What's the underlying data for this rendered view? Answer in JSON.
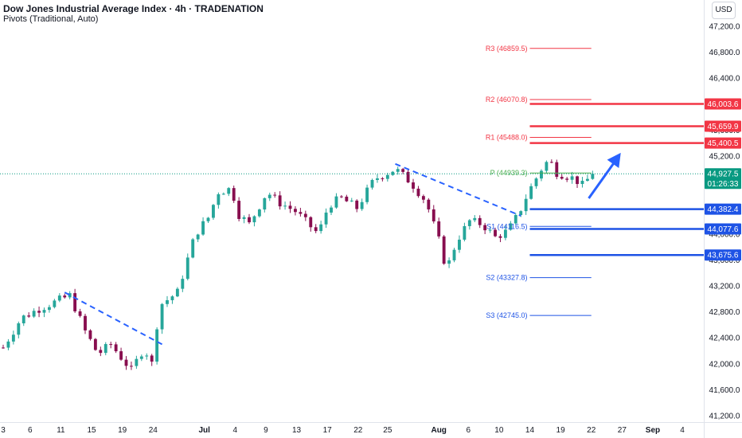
{
  "header": {
    "title": "Dow Jones Industrial Average Index · 4h · TRADENATION",
    "subtitle": "Pivots (Traditional, Auto)",
    "currency": "USD"
  },
  "colors": {
    "up": "#26a69a",
    "down": "#880e4f",
    "resistance": "#f23645",
    "support": "#1e53e5",
    "pivot": "#4caf50",
    "trend": "#2962ff",
    "price_tag": "#089981"
  },
  "chart_data": {
    "type": "candlestick",
    "ylim": [
      41100,
      47400
    ],
    "y_ticks": [
      {
        "value": 47200,
        "label": "47,200.0"
      },
      {
        "value": 46800,
        "label": "46,800.0"
      },
      {
        "value": 46400,
        "label": "46,400.0"
      },
      {
        "value": 46000,
        "label": "46,000.0"
      },
      {
        "value": 45600,
        "label": "45,600.0"
      },
      {
        "value": 45200,
        "label": "45,200.0"
      },
      {
        "value": 44800,
        "label": "44,800.0"
      },
      {
        "value": 44400,
        "label": "44,400.0"
      },
      {
        "value": 44000,
        "label": "44,000.0"
      },
      {
        "value": 43600,
        "label": "43,600.0"
      },
      {
        "value": 43200,
        "label": "43,200.0"
      },
      {
        "value": 42800,
        "label": "42,800.0"
      },
      {
        "value": 42400,
        "label": "42,400.0"
      },
      {
        "value": 42000,
        "label": "42,000.0"
      },
      {
        "value": 41600,
        "label": "41,600.0"
      },
      {
        "value": 41200,
        "label": "41,200.0"
      }
    ],
    "x_ticks": [
      {
        "label": "3",
        "index": 0
      },
      {
        "label": "6",
        "index": 21
      },
      {
        "label": "11",
        "index": 45
      },
      {
        "label": "15",
        "index": 69
      },
      {
        "label": "19",
        "index": 93
      },
      {
        "label": "24",
        "index": 117
      },
      {
        "label": "Jul",
        "index": 157,
        "bold": true
      },
      {
        "label": "4",
        "index": 181
      },
      {
        "label": "9",
        "index": 205
      },
      {
        "label": "13",
        "index": 229
      },
      {
        "label": "17",
        "index": 253
      },
      {
        "label": "22",
        "index": 277
      },
      {
        "label": "25",
        "index": 300
      },
      {
        "label": "Aug",
        "index": 340,
        "bold": true
      },
      {
        "label": "6",
        "index": 363
      },
      {
        "label": "10",
        "index": 387
      },
      {
        "label": "14",
        "index": 411
      },
      {
        "label": "19",
        "index": 435
      },
      {
        "label": "22",
        "index": 459
      },
      {
        "label": "27",
        "index": 483
      },
      {
        "label": "Sep",
        "index": 507,
        "bold": true
      },
      {
        "label": "4",
        "index": 530
      }
    ],
    "bars_start": 0,
    "bars_end": 460,
    "current_price": {
      "value": 44927.5,
      "label": "44,927.5",
      "countdown": "01:26:33"
    },
    "price_anchors": [
      {
        "i": 0,
        "v": 42250
      },
      {
        "i": 14,
        "v": 42700
      },
      {
        "i": 28,
        "v": 42850
      },
      {
        "i": 52,
        "v": 43050
      },
      {
        "i": 64,
        "v": 42500
      },
      {
        "i": 74,
        "v": 42150
      },
      {
        "i": 84,
        "v": 42300
      },
      {
        "i": 100,
        "v": 41900
      },
      {
        "i": 110,
        "v": 42250
      },
      {
        "i": 116,
        "v": 42000
      },
      {
        "i": 122,
        "v": 42900
      },
      {
        "i": 136,
        "v": 43100
      },
      {
        "i": 150,
        "v": 44000
      },
      {
        "i": 160,
        "v": 44250
      },
      {
        "i": 168,
        "v": 44650
      },
      {
        "i": 178,
        "v": 44700
      },
      {
        "i": 184,
        "v": 44300
      },
      {
        "i": 192,
        "v": 44150
      },
      {
        "i": 206,
        "v": 44650
      },
      {
        "i": 214,
        "v": 44500
      },
      {
        "i": 228,
        "v": 44350
      },
      {
        "i": 238,
        "v": 44150
      },
      {
        "i": 246,
        "v": 44000
      },
      {
        "i": 254,
        "v": 44450
      },
      {
        "i": 264,
        "v": 44550
      },
      {
        "i": 276,
        "v": 44400
      },
      {
        "i": 290,
        "v": 44850
      },
      {
        "i": 306,
        "v": 45000
      },
      {
        "i": 318,
        "v": 44800
      },
      {
        "i": 330,
        "v": 44500
      },
      {
        "i": 340,
        "v": 43900
      },
      {
        "i": 346,
        "v": 43450
      },
      {
        "i": 354,
        "v": 43900
      },
      {
        "i": 364,
        "v": 44200
      },
      {
        "i": 374,
        "v": 44150
      },
      {
        "i": 384,
        "v": 43950
      },
      {
        "i": 394,
        "v": 44050
      },
      {
        "i": 402,
        "v": 44300
      },
      {
        "i": 410,
        "v": 44650
      },
      {
        "i": 420,
        "v": 45000
      },
      {
        "i": 426,
        "v": 45150
      },
      {
        "i": 432,
        "v": 44950
      },
      {
        "i": 446,
        "v": 44850
      },
      {
        "i": 452,
        "v": 44750
      },
      {
        "i": 460,
        "v": 44927
      }
    ],
    "pivots": [
      {
        "label": "R3 (46859.5)",
        "value": 46859.5,
        "kind": "resistance"
      },
      {
        "label": "R2 (46070.8)",
        "value": 46070.8,
        "kind": "resistance"
      },
      {
        "label": "R1 (45488.0)",
        "value": 45488.0,
        "kind": "resistance"
      },
      {
        "label": "P (44939.3)",
        "value": 44939.3,
        "kind": "pivot"
      },
      {
        "label": "S1 (44116.5)",
        "value": 44116.5,
        "kind": "support"
      },
      {
        "label": "S2 (43327.8)",
        "value": 43327.8,
        "kind": "support"
      },
      {
        "label": "S3 (42745.0)",
        "value": 42745.0,
        "kind": "support"
      }
    ],
    "key_levels": [
      {
        "value": 46003.6,
        "label": "46,003.6",
        "kind": "resistance"
      },
      {
        "value": 45659.9,
        "label": "45,659.9",
        "kind": "resistance"
      },
      {
        "value": 45400.5,
        "label": "45,400.5",
        "kind": "resistance"
      },
      {
        "value": 44382.4,
        "label": "44,382.4",
        "kind": "support"
      },
      {
        "value": 44077.6,
        "label": "44,077.6",
        "kind": "support"
      },
      {
        "value": 43675.6,
        "label": "43,675.6",
        "kind": "support"
      }
    ],
    "trendlines": [
      {
        "from": {
          "i": 48,
          "v": 43100
        },
        "to": {
          "i": 124,
          "v": 42300
        }
      },
      {
        "from": {
          "i": 306,
          "v": 45080
        },
        "to": {
          "i": 404,
          "v": 44280
        }
      }
    ],
    "forecast_arrow": {
      "from": {
        "i": 457,
        "v": 44550
      },
      "to": {
        "i": 482,
        "v": 45250
      }
    }
  }
}
